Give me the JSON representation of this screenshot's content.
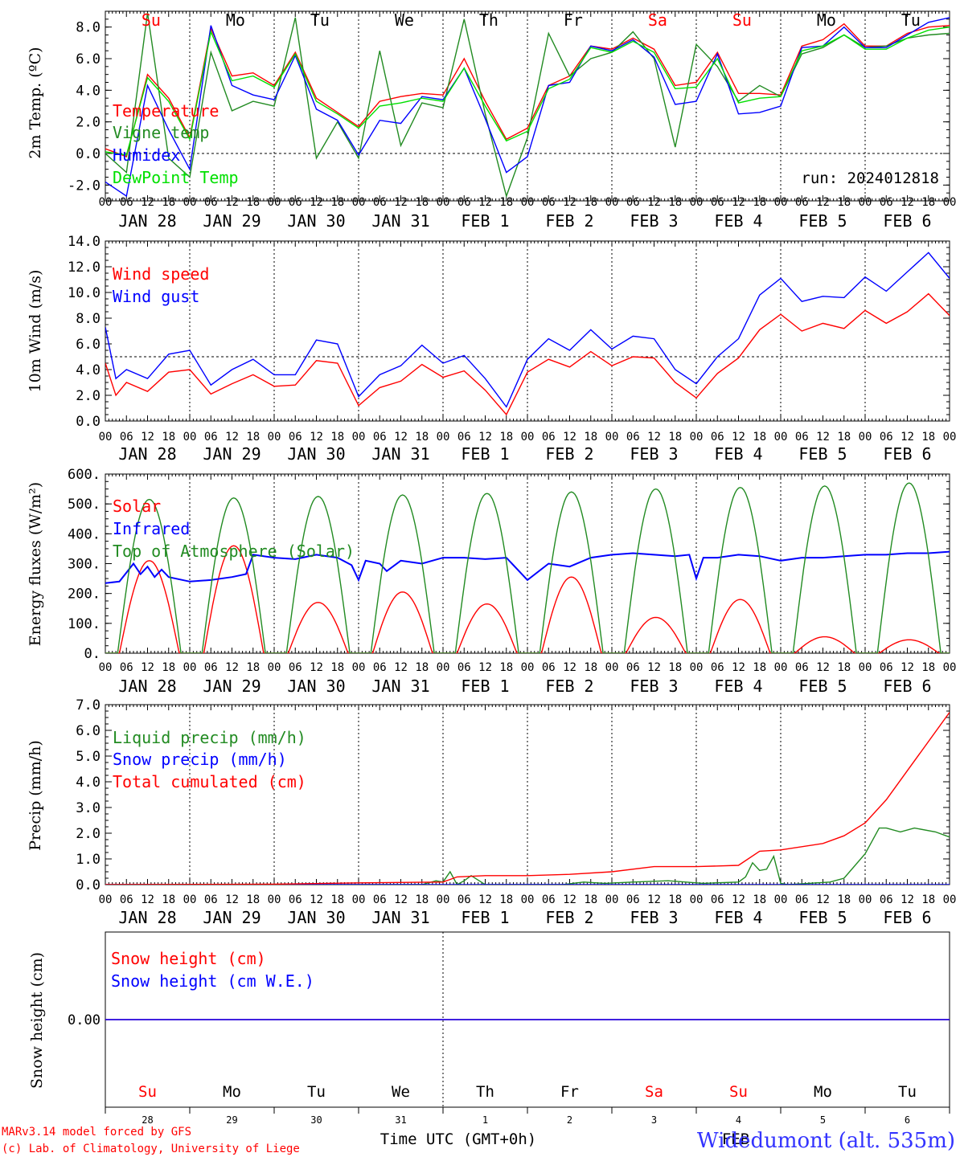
{
  "run_label": "run: 2024012818",
  "footer": {
    "model_line": "MARv3.14 model forced by GFS",
    "credit_line": "(c) Lab. of Climatology, University of Liege",
    "xlabel": "Time UTC (GMT+0h)",
    "station": "Widedumont (alt. 535m)",
    "month_label": "FEB"
  },
  "hour_ticks": [
    "00",
    "06",
    "12",
    "18"
  ],
  "day_labels": [
    "JAN 28",
    "JAN 29",
    "JAN 30",
    "JAN 31",
    "FEB  1",
    "FEB  2",
    "FEB  3",
    "FEB  4",
    "FEB  5",
    "FEB  6"
  ],
  "weekdays": [
    {
      "label": "Su",
      "color": "#ff0000"
    },
    {
      "label": "Mo",
      "color": "#000000"
    },
    {
      "label": "Tu",
      "color": "#000000"
    },
    {
      "label": "We",
      "color": "#000000"
    },
    {
      "label": "Th",
      "color": "#000000"
    },
    {
      "label": "Fr",
      "color": "#000000"
    },
    {
      "label": "Sa",
      "color": "#ff0000"
    },
    {
      "label": "Su",
      "color": "#ff0000"
    },
    {
      "label": "Mo",
      "color": "#000000"
    },
    {
      "label": "Tu",
      "color": "#000000"
    }
  ],
  "day_numbers": [
    "28",
    "29",
    "30",
    "31",
    "1",
    "2",
    "3",
    "4",
    "5",
    "6"
  ],
  "chart_data": [
    {
      "type": "line",
      "id": "temp",
      "ylabel": "2m Temp. (ºC)",
      "ylim": [
        -3,
        9
      ],
      "yticks": [
        -2,
        0,
        2,
        4,
        6,
        8
      ],
      "ytick_labels": [
        "-2.0",
        "0.0",
        "2.0",
        "4.0",
        "6.0",
        "8.0"
      ],
      "dashed_y": 0,
      "x_unit": "hours since JAN 28 00 UTC",
      "series": [
        {
          "name": "Temperature",
          "color": "#ff0000",
          "x": [
            0,
            6,
            12,
            18,
            24,
            30,
            36,
            42,
            48,
            54,
            60,
            66,
            72,
            78,
            84,
            90,
            96,
            102,
            108,
            114,
            120,
            126,
            132,
            138,
            144,
            150,
            156,
            162,
            168,
            174,
            180,
            186,
            192,
            198,
            204,
            210,
            216,
            222,
            228,
            234,
            240
          ],
          "y": [
            0.3,
            -0.2,
            5.0,
            3.5,
            1.0,
            7.9,
            4.9,
            5.1,
            4.3,
            6.4,
            3.5,
            2.6,
            1.7,
            3.3,
            3.6,
            3.8,
            3.7,
            6.0,
            3.3,
            0.9,
            1.6,
            4.3,
            4.9,
            6.8,
            6.6,
            7.3,
            6.6,
            4.3,
            4.5,
            6.4,
            3.8,
            3.8,
            3.7,
            6.8,
            7.2,
            8.2,
            6.8,
            6.8,
            7.6,
            8.0,
            8.1
          ]
        },
        {
          "name": "Vigne temp",
          "color": "#228b22",
          "x": [
            0,
            6,
            12,
            18,
            24,
            30,
            36,
            42,
            48,
            54,
            60,
            66,
            72,
            78,
            84,
            90,
            96,
            102,
            108,
            114,
            120,
            126,
            132,
            138,
            144,
            150,
            156,
            162,
            168,
            174,
            180,
            186,
            192,
            198,
            204,
            210,
            216,
            222,
            228,
            234,
            240
          ],
          "y": [
            0.0,
            -1.2,
            8.9,
            -0.3,
            -1.5,
            6.4,
            2.7,
            3.3,
            3.0,
            8.6,
            -0.3,
            2.0,
            -0.3,
            6.5,
            0.5,
            3.2,
            2.9,
            8.5,
            2.5,
            -2.7,
            1.0,
            7.6,
            4.9,
            6.0,
            6.4,
            7.7,
            6.0,
            0.4,
            6.9,
            5.5,
            3.3,
            4.3,
            3.6,
            6.3,
            6.7,
            7.5,
            6.7,
            6.8,
            7.3,
            7.5,
            7.6
          ]
        },
        {
          "name": "Humidex",
          "color": "#0000ff",
          "x": [
            0,
            6,
            12,
            18,
            24,
            30,
            36,
            42,
            48,
            54,
            60,
            66,
            72,
            78,
            84,
            90,
            96,
            102,
            108,
            114,
            120,
            126,
            132,
            138,
            144,
            150,
            156,
            162,
            168,
            174,
            180,
            186,
            192,
            198,
            204,
            210,
            216,
            222,
            228,
            234,
            240
          ],
          "y": [
            -1.8,
            -2.7,
            4.3,
            1.5,
            -1.0,
            8.1,
            4.3,
            3.7,
            3.4,
            6.2,
            2.8,
            2.1,
            -0.1,
            2.1,
            1.9,
            3.6,
            3.4,
            5.4,
            2.2,
            -1.2,
            -0.2,
            4.3,
            4.5,
            6.8,
            6.5,
            7.2,
            6.1,
            3.1,
            3.3,
            6.3,
            2.5,
            2.6,
            3.0,
            6.7,
            6.8,
            8.0,
            6.7,
            6.7,
            7.5,
            8.3,
            8.6
          ]
        },
        {
          "name": "DewPoint Temp",
          "color": "#00e000",
          "x": [
            0,
            6,
            12,
            18,
            24,
            30,
            36,
            42,
            48,
            54,
            60,
            66,
            72,
            78,
            84,
            90,
            96,
            102,
            108,
            114,
            120,
            126,
            132,
            138,
            144,
            150,
            156,
            162,
            168,
            174,
            180,
            186,
            192,
            198,
            204,
            210,
            216,
            222,
            228,
            234,
            240
          ],
          "y": [
            0.1,
            -0.1,
            4.8,
            3.3,
            0.9,
            7.7,
            4.6,
            4.9,
            4.2,
            6.3,
            3.3,
            2.5,
            1.6,
            3.0,
            3.2,
            3.5,
            3.3,
            5.4,
            3.0,
            0.8,
            1.4,
            4.1,
            4.7,
            6.7,
            6.4,
            7.1,
            6.4,
            4.1,
            4.2,
            6.0,
            3.2,
            3.5,
            3.6,
            6.5,
            6.8,
            7.5,
            6.6,
            6.6,
            7.3,
            7.8,
            8.0
          ]
        }
      ]
    },
    {
      "type": "line",
      "id": "wind",
      "ylabel": "10m Wind (m/s)",
      "ylim": [
        0,
        14
      ],
      "yticks": [
        0,
        2,
        4,
        6,
        8,
        10,
        12,
        14
      ],
      "ytick_labels": [
        "0.0",
        "2.0",
        "4.0",
        "6.0",
        "8.0",
        "10.0",
        "12.0",
        "14.0"
      ],
      "dashed_y": 5,
      "x_unit": "hours since JAN 28 00 UTC",
      "series": [
        {
          "name": "Wind speed",
          "color": "#ff0000",
          "x": [
            0,
            3,
            6,
            12,
            18,
            24,
            30,
            36,
            42,
            48,
            54,
            60,
            66,
            72,
            78,
            84,
            90,
            96,
            102,
            108,
            114,
            120,
            126,
            132,
            138,
            144,
            150,
            156,
            162,
            168,
            174,
            180,
            186,
            192,
            198,
            204,
            210,
            216,
            222,
            228,
            234,
            240
          ],
          "y": [
            4.5,
            2.0,
            3.0,
            2.3,
            3.8,
            4.0,
            2.1,
            2.9,
            3.6,
            2.7,
            2.8,
            4.7,
            4.5,
            1.2,
            2.6,
            3.1,
            4.4,
            3.4,
            3.9,
            2.4,
            0.5,
            3.8,
            4.8,
            4.2,
            5.4,
            4.3,
            5.0,
            4.9,
            3.0,
            1.8,
            3.7,
            4.9,
            7.1,
            8.3,
            7.0,
            7.6,
            7.2,
            8.6,
            7.6,
            8.5,
            9.9,
            8.2
          ]
        },
        {
          "name": "Wind gust",
          "color": "#0000ff",
          "x": [
            0,
            3,
            6,
            12,
            18,
            24,
            30,
            36,
            42,
            48,
            54,
            60,
            66,
            72,
            78,
            84,
            90,
            96,
            102,
            108,
            114,
            120,
            126,
            132,
            138,
            144,
            150,
            156,
            162,
            168,
            174,
            180,
            186,
            192,
            198,
            204,
            210,
            216,
            222,
            228,
            234,
            240
          ],
          "y": [
            7.3,
            3.3,
            4.0,
            3.3,
            5.2,
            5.5,
            2.8,
            4.0,
            4.8,
            3.6,
            3.6,
            6.3,
            6.0,
            1.9,
            3.6,
            4.3,
            5.9,
            4.5,
            5.1,
            3.3,
            1.1,
            4.8,
            6.4,
            5.5,
            7.1,
            5.6,
            6.6,
            6.4,
            4.0,
            2.9,
            5.0,
            6.4,
            9.8,
            11.1,
            9.3,
            9.7,
            9.6,
            11.2,
            10.1,
            11.6,
            13.1,
            11.1
          ]
        }
      ]
    },
    {
      "type": "line",
      "id": "energy",
      "ylabel": "Energy fluxes (W/m²)",
      "ylim": [
        0,
        600
      ],
      "yticks": [
        0,
        100,
        200,
        300,
        400,
        500,
        600
      ],
      "ytick_labels": [
        "0.",
        "100.",
        "200.",
        "300.",
        "400.",
        "500.",
        "600."
      ],
      "x_unit": "hours since JAN 28 00 UTC",
      "series": [
        {
          "name": "Solar",
          "color": "#ff0000",
          "peaks": [
            {
              "center": 12.5,
              "value": 310
            },
            {
              "center": 36.5,
              "value": 360
            },
            {
              "center": 60.5,
              "value": 170
            },
            {
              "center": 84.5,
              "value": 205
            },
            {
              "center": 108.5,
              "value": 165
            },
            {
              "center": 132.5,
              "value": 255
            },
            {
              "center": 156.5,
              "value": 120
            },
            {
              "center": 180.5,
              "value": 180
            },
            {
              "center": 204.5,
              "value": 55
            },
            {
              "center": 228.5,
              "value": 45
            }
          ],
          "half_width_hours": 8.5
        },
        {
          "name": "Infrared",
          "color": "#0000ff",
          "x": [
            0,
            4,
            6,
            8,
            10,
            12,
            14,
            16,
            18,
            24,
            30,
            36,
            40,
            42,
            48,
            54,
            60,
            66,
            70,
            72,
            74,
            78,
            80,
            84,
            90,
            96,
            102,
            108,
            114,
            120,
            126,
            132,
            138,
            144,
            150,
            156,
            162,
            166,
            168,
            170,
            174,
            180,
            186,
            192,
            198,
            204,
            210,
            216,
            222,
            228,
            234,
            240
          ],
          "y": [
            235,
            240,
            270,
            300,
            265,
            290,
            255,
            280,
            255,
            240,
            245,
            255,
            265,
            330,
            320,
            315,
            330,
            320,
            295,
            245,
            310,
            300,
            275,
            310,
            300,
            320,
            320,
            315,
            320,
            245,
            300,
            290,
            320,
            330,
            335,
            330,
            325,
            330,
            250,
            320,
            320,
            330,
            325,
            310,
            320,
            320,
            325,
            330,
            330,
            335,
            335,
            340
          ]
        },
        {
          "name": "Top of Atmosphere (Solar)",
          "color": "#228b22",
          "peaks": [
            {
              "center": 12.5,
              "value": 515
            },
            {
              "center": 36.5,
              "value": 520
            },
            {
              "center": 60.5,
              "value": 525
            },
            {
              "center": 84.5,
              "value": 530
            },
            {
              "center": 108.5,
              "value": 535
            },
            {
              "center": 132.5,
              "value": 540
            },
            {
              "center": 156.5,
              "value": 550
            },
            {
              "center": 180.5,
              "value": 555
            },
            {
              "center": 204.5,
              "value": 560
            },
            {
              "center": 228.5,
              "value": 570
            }
          ],
          "half_width_hours": 9
        }
      ]
    },
    {
      "type": "line",
      "id": "precip",
      "ylabel": "Precip (mm/h)",
      "ylim": [
        0,
        7
      ],
      "yticks": [
        0,
        1,
        2,
        3,
        4,
        5,
        6,
        7
      ],
      "ytick_labels": [
        "0.0",
        "1.0",
        "2.0",
        "3.0",
        "4.0",
        "5.0",
        "6.0",
        "7.0"
      ],
      "x_unit": "hours since JAN 28 00 UTC",
      "series": [
        {
          "name": "Liquid precip (mm/h)",
          "color": "#228b22",
          "x": [
            0,
            90,
            94,
            96,
            98,
            100,
            102,
            104,
            108,
            120,
            130,
            136,
            142,
            150,
            160,
            170,
            180,
            182,
            184,
            186,
            188,
            190,
            192,
            194,
            200,
            206,
            210,
            216,
            218,
            220,
            222,
            226,
            230,
            236,
            240
          ],
          "y": [
            0,
            0,
            0.15,
            0.1,
            0.5,
            0,
            0.15,
            0.35,
            0,
            0,
            0,
            0.1,
            0.05,
            0.1,
            0.15,
            0.05,
            0.1,
            0.3,
            0.85,
            0.55,
            0.6,
            1.1,
            0.05,
            0,
            0.05,
            0.1,
            0.25,
            1.2,
            1.7,
            2.2,
            2.2,
            2.05,
            2.2,
            2.05,
            1.85
          ]
        },
        {
          "name": "Snow precip (mm/h)",
          "color": "#0000ff",
          "x": [
            0,
            240
          ],
          "y": [
            0,
            0
          ]
        },
        {
          "name": "Total cumulated (cm)",
          "color": "#ff0000",
          "x": [
            0,
            48,
            72,
            96,
            100,
            108,
            120,
            132,
            144,
            156,
            168,
            180,
            186,
            192,
            204,
            210,
            216,
            222,
            240
          ],
          "y": [
            0,
            0.02,
            0.07,
            0.1,
            0.3,
            0.35,
            0.35,
            0.4,
            0.5,
            0.7,
            0.7,
            0.75,
            1.3,
            1.35,
            1.6,
            1.9,
            2.4,
            3.3,
            6.7
          ]
        }
      ]
    },
    {
      "type": "line",
      "id": "snow",
      "ylabel": "Snow height (cm)",
      "ylim": [
        -1,
        1
      ],
      "yticks": [
        0
      ],
      "ytick_labels": [
        "0.00"
      ],
      "x_unit": "hours since JAN 28 00 UTC",
      "series": [
        {
          "name": "Snow height (cm)",
          "color": "#ff0000",
          "x": [
            0,
            240
          ],
          "y": [
            0,
            0
          ]
        },
        {
          "name": "Snow height (cm W.E.)",
          "color": "#0000ff",
          "x": [
            0,
            240
          ],
          "y": [
            0,
            0
          ]
        }
      ]
    }
  ]
}
